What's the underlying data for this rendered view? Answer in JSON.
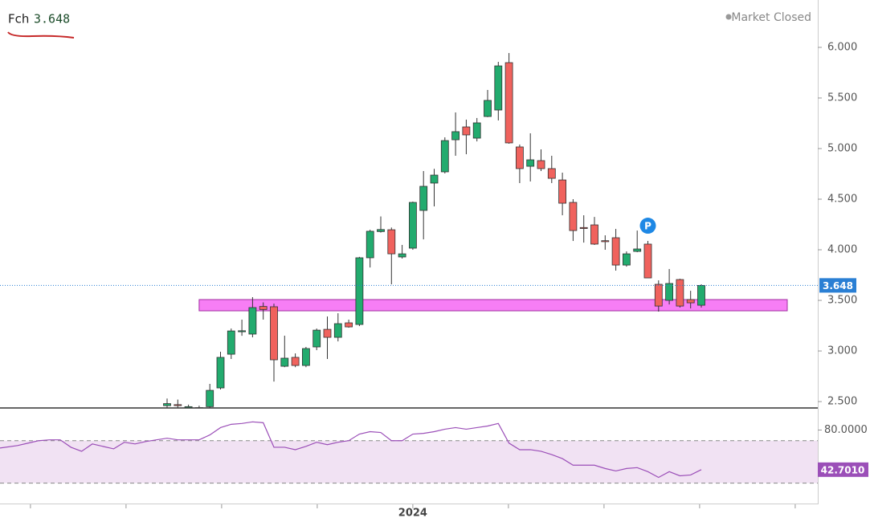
{
  "chart_data": [
    {
      "type": "candlestick",
      "title": "Fch",
      "status": "Market Closed",
      "last_price": 3.648,
      "categories": [
        null,
        null,
        null,
        null,
        null,
        null,
        null,
        null,
        null,
        null,
        null,
        null,
        null,
        null,
        null,
        null,
        null,
        null,
        null,
        null,
        null,
        null,
        null,
        null,
        null,
        null,
        null,
        null,
        null,
        null,
        null,
        null,
        null,
        null,
        null,
        null,
        null,
        null,
        "2024",
        null,
        null,
        null,
        null,
        null,
        null,
        null,
        null,
        null,
        null,
        null,
        null,
        null,
        null,
        null,
        null,
        null,
        null,
        null,
        null,
        null,
        null,
        null,
        null,
        null,
        null,
        null
      ],
      "open": [
        null,
        null,
        null,
        null,
        null,
        null,
        null,
        null,
        null,
        null,
        null,
        null,
        null,
        null,
        null,
        2.46,
        2.47,
        2.44,
        2.43,
        2.45,
        2.635,
        2.968,
        3.19,
        3.167,
        3.44,
        3.437,
        2.849,
        2.937,
        2.857,
        3.04,
        3.214,
        3.135,
        3.278,
        3.262,
        3.921,
        4.18,
        4.198,
        3.929,
        4.016,
        4.389,
        4.659,
        4.77,
        5.087,
        5.214,
        5.103,
        5.317,
        5.381,
        5.849,
        5.016,
        4.825,
        4.881,
        4.802,
        4.69,
        4.468,
        4.22,
        4.246,
        4.09,
        4.119,
        3.849,
        3.984,
        4.056,
        3.659,
        3.5,
        3.706,
        3.508,
        3.452
      ],
      "high": [
        null,
        null,
        null,
        null,
        null,
        null,
        null,
        null,
        null,
        null,
        null,
        null,
        null,
        null,
        null,
        2.53,
        2.52,
        2.47,
        2.46,
        2.675,
        2.992,
        3.222,
        3.31,
        3.532,
        3.48,
        3.468,
        3.151,
        2.976,
        3.04,
        3.222,
        3.341,
        3.373,
        3.31,
        3.93,
        4.198,
        4.33,
        4.22,
        4.048,
        4.476,
        4.778,
        4.8,
        5.111,
        5.357,
        5.286,
        5.302,
        5.579,
        5.857,
        5.944,
        5.04,
        5.151,
        4.992,
        4.929,
        4.762,
        4.5,
        4.341,
        4.325,
        4.143,
        4.206,
        3.984,
        4.19,
        4.087,
        3.698,
        3.81,
        3.714,
        3.595,
        3.659
      ],
      "low": [
        null,
        null,
        null,
        null,
        null,
        null,
        null,
        null,
        null,
        null,
        null,
        null,
        null,
        null,
        null,
        2.4,
        2.4,
        2.38,
        2.38,
        2.4,
        2.62,
        2.921,
        3.15,
        3.135,
        3.31,
        2.698,
        2.84,
        2.84,
        2.84,
        3.008,
        2.921,
        3.095,
        3.23,
        3.246,
        3.825,
        4.17,
        3.659,
        3.913,
        4.0,
        4.103,
        4.429,
        4.754,
        4.929,
        4.944,
        5.071,
        5.31,
        5.278,
        5.048,
        4.659,
        4.675,
        4.778,
        4.659,
        4.341,
        4.087,
        4.071,
        4.048,
        4.0,
        3.794,
        3.833,
        3.976,
        3.722,
        3.389,
        3.46,
        3.429,
        3.421,
        3.429
      ],
      "close": [
        null,
        null,
        null,
        null,
        null,
        null,
        null,
        null,
        null,
        null,
        null,
        null,
        null,
        null,
        null,
        2.48,
        2.46,
        2.45,
        2.44,
        2.611,
        2.937,
        3.198,
        3.2,
        3.429,
        3.41,
        2.913,
        2.929,
        2.857,
        3.024,
        3.206,
        3.135,
        3.27,
        3.238,
        3.921,
        4.183,
        4.2,
        3.96,
        3.96,
        4.468,
        4.627,
        4.738,
        5.079,
        5.167,
        5.135,
        5.254,
        5.476,
        5.817,
        5.056,
        4.802,
        4.889,
        4.802,
        4.706,
        4.46,
        4.19,
        4.21,
        4.056,
        4.08,
        3.849,
        3.96,
        4.008,
        3.722,
        3.444,
        3.667,
        3.444,
        3.476,
        3.648
      ],
      "up_color": "#22ab6e",
      "down_color": "#f0625d",
      "price_line_color": "#2a7fd4",
      "ylim": [
        2.437,
        6.468
      ],
      "yticks": [
        {
          "value": 2.5,
          "label": "2.500"
        },
        {
          "value": 3,
          "label": "3.000"
        },
        {
          "value": 3.5,
          "label": "3.500"
        },
        {
          "value": 4,
          "label": "4.000"
        },
        {
          "value": 4.5,
          "label": "4.500"
        },
        {
          "value": 5,
          "label": "5.000"
        },
        {
          "value": 5.5,
          "label": "5.500"
        },
        {
          "value": 6,
          "label": "6.000"
        }
      ],
      "zones": [
        {
          "from": 3.397,
          "to": 3.508,
          "start": 18,
          "color": "#f77ef5"
        }
      ],
      "annotations": [
        {
          "text": "P",
          "index": 60,
          "color": "#1e88e5"
        }
      ]
    },
    {
      "type": "line",
      "color": "#9b4fb8",
      "band_color": "#f1e2f3",
      "values": [
        63.1,
        65.4,
        67.7,
        70.0,
        70.8,
        70.8,
        63.8,
        60.0,
        66.9,
        64.6,
        62.3,
        68.5,
        66.9,
        69.2,
        70.8,
        72.3,
        70.8,
        70.8,
        70.8,
        75.4,
        82.3,
        85.4,
        86.2,
        87.7,
        86.9,
        63.8,
        63.8,
        61.5,
        64.6,
        68.5,
        66.2,
        68.5,
        70.0,
        76.2,
        78.5,
        77.7,
        70.0,
        70.0,
        76.2,
        76.9,
        78.5,
        80.8,
        82.3,
        80.8,
        82.3,
        83.8,
        86.2,
        67.7,
        61.5,
        61.5,
        60.0,
        56.9,
        53.1,
        46.9,
        46.9,
        46.9,
        43.8,
        41.5,
        43.8,
        44.6,
        40.8,
        35.4,
        40.8,
        36.9,
        37.7,
        42.701
      ],
      "value_labels": [
        null,
        null,
        null,
        null,
        null,
        null,
        null,
        null,
        null,
        null,
        null,
        null,
        null,
        null,
        null,
        null,
        null,
        null,
        null,
        null,
        null,
        null,
        null,
        null,
        null,
        null,
        null,
        null,
        null,
        null,
        null,
        null,
        null,
        null,
        null,
        null,
        null,
        null,
        null,
        null,
        null,
        null,
        null,
        null,
        null,
        null,
        null,
        null,
        null,
        null,
        null,
        null,
        null,
        null,
        null,
        null,
        null,
        null,
        null,
        null,
        null,
        null,
        null,
        null,
        null,
        "42.7010"
      ],
      "ylim": [
        10.8,
        100.8
      ],
      "yticks": [
        {
          "value": 80,
          "label": "80.0000"
        }
      ],
      "bands": [
        30,
        70
      ]
    }
  ]
}
